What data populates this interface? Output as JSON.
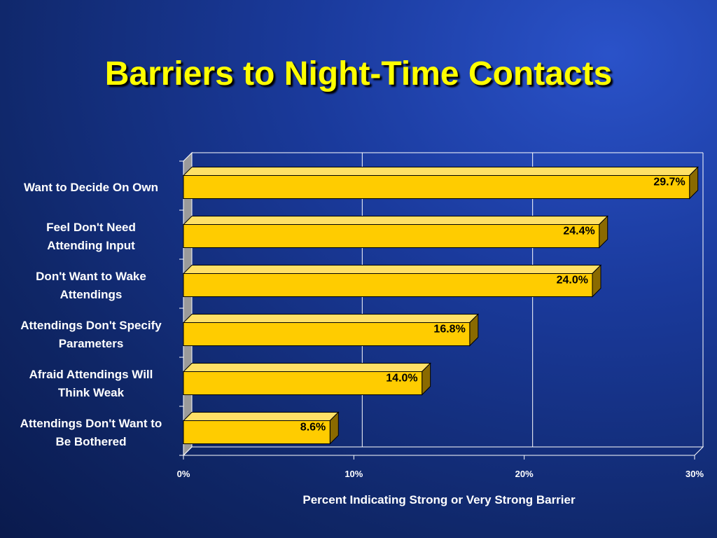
{
  "slide": {
    "title": "Barriers to Night-Time Contacts"
  },
  "colors": {
    "bar_front": "#ffcc00",
    "bar_top": "#ffe066",
    "bar_side": "#8a6a00",
    "text": "#ffffff",
    "title": "#ffff00"
  },
  "chart_data": {
    "type": "bar",
    "orientation": "horizontal",
    "categories": [
      [
        "Want to Decide On Own"
      ],
      [
        "Feel Don't Need",
        "Attending Input"
      ],
      [
        "Don't Want to Wake",
        "Attendings"
      ],
      [
        "Attendings Don't Specify",
        "Parameters"
      ],
      [
        "Afraid Attendings Will",
        "Think Weak"
      ],
      [
        "Attendings Don't Want to",
        "Be Bothered"
      ]
    ],
    "values": [
      29.7,
      24.4,
      24.0,
      16.8,
      14.0,
      8.6
    ],
    "value_labels": [
      "29.7%",
      "24.4%",
      "24.0%",
      "16.8%",
      "14.0%",
      "8.6%"
    ],
    "xlim": [
      0,
      30
    ],
    "xticks": [
      0,
      10,
      20,
      30
    ],
    "xtick_labels": [
      "0%",
      "10%",
      "20%",
      "30%"
    ],
    "xlabel": "Percent Indicating Strong or Very Strong Barrier",
    "grid": true,
    "legend": "none"
  }
}
